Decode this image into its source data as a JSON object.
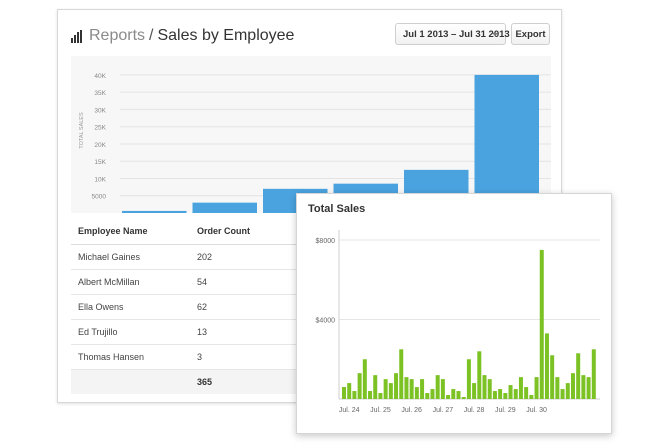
{
  "header": {
    "breadcrumb_parent": "Reports",
    "separator": "/",
    "page_title": "Sales by Employee",
    "date_range": "Jul 1 2013 – Jul 31 2013",
    "export_label": "Export"
  },
  "employee_chart": {
    "type": "bar",
    "ylabel": "TOTAL SALES",
    "y_ticks": [
      "5000",
      "10K",
      "15K",
      "20K",
      "25K",
      "30K",
      "35K",
      "40K"
    ],
    "ylim": [
      0,
      42000
    ],
    "values": [
      600,
      3000,
      7000,
      8500,
      12500,
      40000
    ],
    "color": "#4aa3df"
  },
  "table": {
    "columns": [
      "Employee Name",
      "Order Count"
    ],
    "rows": [
      {
        "name": "Michael Gaines",
        "count": "202"
      },
      {
        "name": "Albert McMillan",
        "count": "54"
      },
      {
        "name": "Ella Owens",
        "count": "62"
      },
      {
        "name": "Ed Trujillo",
        "count": "13"
      },
      {
        "name": "Thomas Hansen",
        "count": "3"
      }
    ],
    "total_count": "365"
  },
  "chart_data": {
    "type": "bar",
    "title": "Total Sales",
    "y_ticks": [
      {
        "label": "$8000",
        "value": 8000
      },
      {
        "label": "$4000",
        "value": 4000
      }
    ],
    "ylim": [
      0,
      8300
    ],
    "x_ticks": [
      {
        "label": "Jul. 24",
        "index": 1
      },
      {
        "label": "Jul. 25",
        "index": 7
      },
      {
        "label": "Jul. 26",
        "index": 13
      },
      {
        "label": "Jul. 27",
        "index": 19
      },
      {
        "label": "Jul. 28",
        "index": 25
      },
      {
        "label": "Jul. 29",
        "index": 31
      },
      {
        "label": "Jul. 30",
        "index": 37
      }
    ],
    "values": [
      600,
      800,
      400,
      1300,
      2000,
      400,
      1200,
      300,
      1000,
      800,
      1300,
      2500,
      1100,
      1000,
      600,
      1000,
      300,
      500,
      1200,
      1000,
      200,
      500,
      400,
      100,
      2000,
      800,
      2400,
      1200,
      1000,
      400,
      500,
      300,
      700,
      500,
      1100,
      600,
      200,
      1100,
      7500,
      3300,
      2200,
      1100,
      500,
      800,
      1300,
      2300,
      1200,
      1100,
      2500
    ],
    "color": "#7cc225"
  }
}
